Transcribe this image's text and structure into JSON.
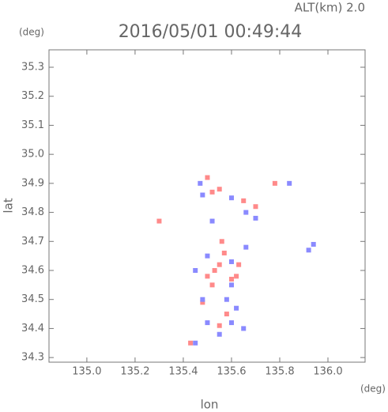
{
  "chart_data": {
    "type": "scatter",
    "annotation": "ALT(km) 2.0",
    "title": "2016/05/01 00:49:44",
    "xlabel": "lon",
    "xlabel_unit": "(deg)",
    "ylabel": "lat",
    "ylabel_unit": "(deg)",
    "xlim": [
      134.843,
      136.154
    ],
    "ylim": [
      34.284,
      35.36
    ],
    "xticks": [
      {
        "value": 135.0,
        "label": "135.0"
      },
      {
        "value": 135.2,
        "label": "135.2"
      },
      {
        "value": 135.4,
        "label": "135.4"
      },
      {
        "value": 135.6,
        "label": "135.6"
      },
      {
        "value": 135.8,
        "label": "135.8"
      },
      {
        "value": 136.0,
        "label": "136.0"
      }
    ],
    "yticks": [
      34.3,
      34.4,
      34.5,
      34.6,
      34.7,
      34.8,
      34.9,
      {
        "value": 35.0,
        "label": "35.0"
      },
      35.1,
      35.2,
      35.3
    ],
    "series": [
      {
        "color": "#ff8a8a",
        "x": [
          135.43,
          135.5,
          135.52,
          135.55,
          135.5,
          135.55,
          135.57,
          135.6,
          135.52,
          135.55,
          135.62,
          135.63,
          135.48,
          135.56,
          135.58,
          135.65,
          135.7,
          135.78,
          135.3,
          135.53
        ],
        "y": [
          34.35,
          34.92,
          34.87,
          34.88,
          34.58,
          34.62,
          34.66,
          34.57,
          34.55,
          34.41,
          34.58,
          34.62,
          34.49,
          34.7,
          34.45,
          34.84,
          34.82,
          34.9,
          34.77,
          34.6
        ]
      },
      {
        "color": "#8a8aff",
        "x": [
          135.47,
          135.48,
          135.6,
          135.66,
          135.7,
          135.84,
          135.94,
          135.92,
          135.5,
          135.6,
          135.62,
          135.6,
          135.65,
          135.5,
          135.48,
          135.45,
          135.58,
          135.66,
          135.6,
          135.55,
          135.45,
          135.52
        ],
        "y": [
          34.9,
          34.86,
          34.85,
          34.8,
          34.78,
          34.9,
          34.69,
          34.67,
          34.65,
          34.55,
          34.47,
          34.42,
          34.4,
          34.42,
          34.5,
          34.6,
          34.5,
          34.68,
          34.63,
          34.38,
          34.35,
          34.77
        ]
      }
    ]
  }
}
